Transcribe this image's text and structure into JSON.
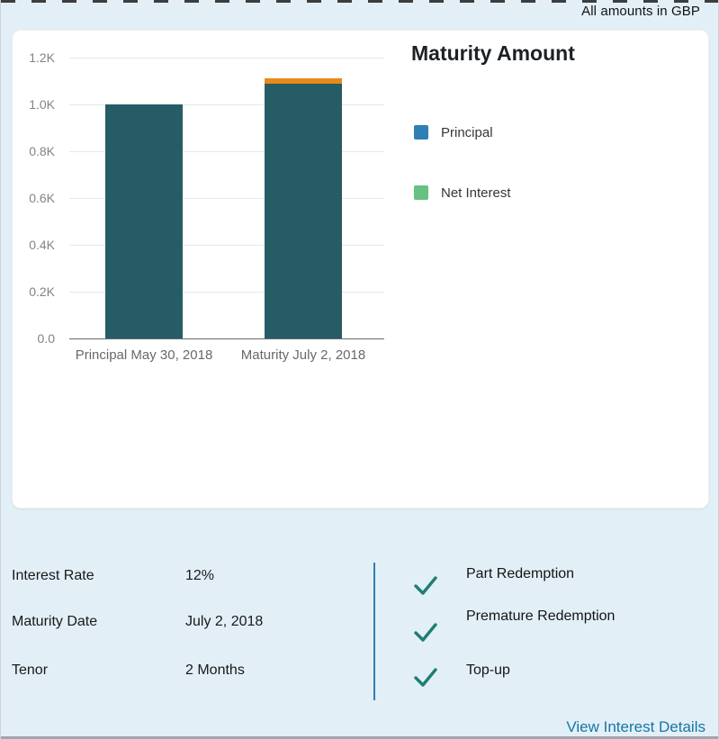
{
  "header": {
    "note": "All amounts in GBP"
  },
  "chart_data": {
    "type": "bar",
    "stacked": true,
    "title": "Maturity Amount",
    "categories": [
      "Principal May 30, 2018",
      "Maturity July 2, 2018"
    ],
    "series": [
      {
        "name": "Principal",
        "values": [
          1000,
          1090
        ],
        "bar_color": "#265c66",
        "legend_color": "#2e7fb5"
      },
      {
        "name": "Net Interest",
        "values": [
          0,
          20
        ],
        "bar_color": "#e8891b",
        "legend_color": "#65c184"
      }
    ],
    "ylim": [
      0,
      1200
    ],
    "yticks": [
      "1.2K",
      "1.0K",
      "0.8K",
      "0.6K",
      "0.4K",
      "0.2K",
      "0.0"
    ],
    "grid": true,
    "legend_position": "right"
  },
  "details": {
    "rows": [
      {
        "label": "Interest Rate",
        "value": "12%"
      },
      {
        "label": "Maturity Date",
        "value": "July 2, 2018"
      },
      {
        "label": "Tenor",
        "value": "2 Months"
      }
    ]
  },
  "features": {
    "items": [
      {
        "label": "Part Redemption"
      },
      {
        "label": "Premature Redemption"
      },
      {
        "label": "Top-up"
      }
    ]
  },
  "footer": {
    "link_label": "View Interest Details"
  },
  "colors": {
    "background": "#e3eff7",
    "bar_principal": "#265c66",
    "bar_net_interest_cap": "#e8891b",
    "legend_principal": "#2e7fb5",
    "legend_net_interest": "#65c184",
    "check": "#1e7e73",
    "divider": "#2e80b5",
    "link": "#1477a5"
  }
}
